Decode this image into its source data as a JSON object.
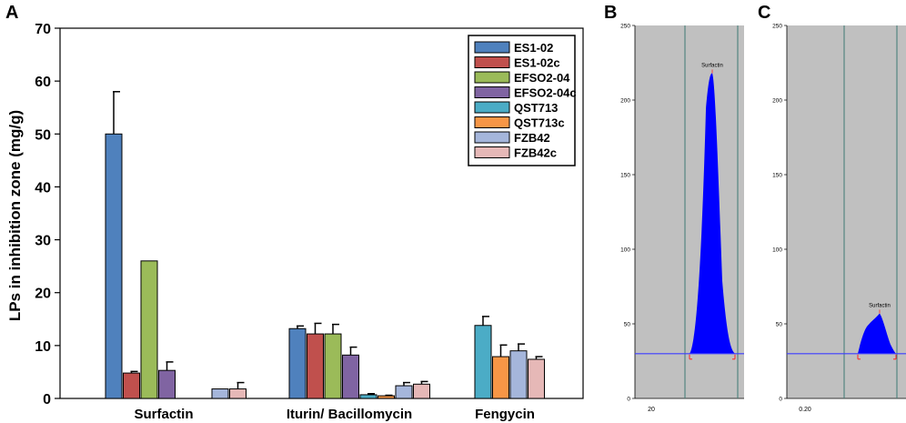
{
  "chart_data": [
    {
      "type": "bar",
      "panel_label": "A",
      "title": "",
      "xlabel": "",
      "ylabel": "LPs in inhibition zone (mg/g)",
      "ylim": [
        0,
        70
      ],
      "yticks": [
        0,
        10,
        20,
        30,
        40,
        50,
        60,
        70
      ],
      "categories": [
        "Surfactin",
        "Iturin/ Bacillomycin",
        "Fengycin"
      ],
      "legend_position": "top-right",
      "series": [
        {
          "name": "ES1-02",
          "color": "#4F81BD",
          "values": [
            50.0,
            13.2,
            0
          ],
          "errors": [
            8.0,
            0.5,
            0
          ]
        },
        {
          "name": "ES1-02c",
          "color": "#C0504D",
          "values": [
            4.8,
            12.2,
            0
          ],
          "errors": [
            0.3,
            2.0,
            0
          ]
        },
        {
          "name": "EFSO2-04",
          "color": "#9BBB59",
          "values": [
            26.0,
            12.2,
            0
          ],
          "errors": [
            0,
            1.8,
            0
          ]
        },
        {
          "name": "EFSO2-04c",
          "color": "#8064A2",
          "values": [
            5.3,
            8.2,
            0
          ],
          "errors": [
            1.6,
            1.5,
            0
          ]
        },
        {
          "name": "QST713",
          "color": "#4BACC6",
          "values": [
            0,
            0.7,
            13.8
          ],
          "errors": [
            0,
            0.2,
            1.7
          ]
        },
        {
          "name": "QST713c",
          "color": "#F79646",
          "values": [
            0,
            0.5,
            7.9
          ],
          "errors": [
            0,
            0.1,
            2.2
          ]
        },
        {
          "name": "FZB42",
          "color": "#A5B6DB",
          "values": [
            1.8,
            2.4,
            9.0
          ],
          "errors": [
            0,
            0.6,
            1.3
          ]
        },
        {
          "name": "FZB42c",
          "color": "#E6B8B7",
          "values": [
            1.8,
            2.7,
            7.4
          ],
          "errors": [
            1.2,
            0.5,
            0.5
          ]
        }
      ]
    },
    {
      "type": "area",
      "panel_label": "B",
      "ylim": [
        0,
        250
      ],
      "yticks": [
        0,
        50,
        100,
        150,
        200,
        250
      ],
      "x_tick_label": "20",
      "peak_label": "Surfactin",
      "baseline": 30,
      "peak_height": 218,
      "fill_color": "#0000FF"
    },
    {
      "type": "area",
      "panel_label": "C",
      "ylim": [
        0,
        250
      ],
      "yticks": [
        0,
        50,
        100,
        150,
        200,
        250
      ],
      "x_tick_label": "0.20",
      "peak_label": "Surfactin",
      "baseline": 30,
      "peak_height": 57,
      "fill_color": "#0000FF"
    }
  ]
}
